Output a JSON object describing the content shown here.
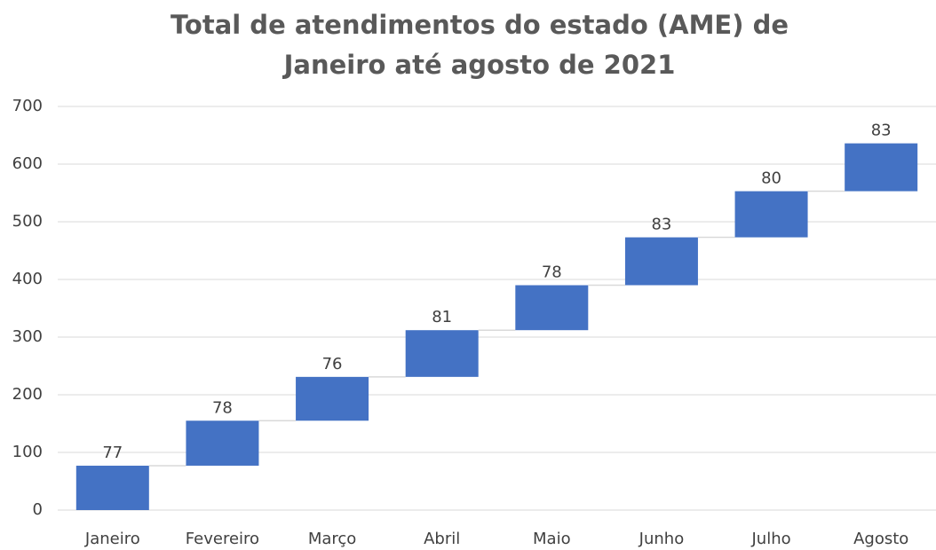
{
  "chart_data": {
    "type": "waterfall",
    "title": [
      "Total de atendimentos do estado (AME) de",
      "Janeiro até agosto de 2021"
    ],
    "categories": [
      "Janeiro",
      "Fevereiro",
      "Março",
      "Abril",
      "Maio",
      "Junho",
      "Julho",
      "Agosto"
    ],
    "values": [
      77,
      78,
      76,
      81,
      78,
      83,
      80,
      83
    ],
    "color": "#4472c4",
    "ylim": [
      0,
      700
    ],
    "yticks": [
      0,
      100,
      200,
      300,
      400,
      500,
      600,
      700
    ],
    "grid": true
  }
}
